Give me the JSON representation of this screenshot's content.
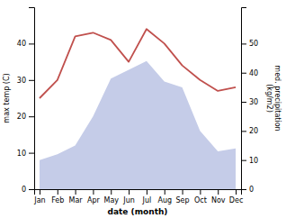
{
  "chart_data": {
    "type": "line",
    "categories": [
      "Jan",
      "Feb",
      "Mar",
      "Apr",
      "May",
      "Jun",
      "Jul",
      "Aug",
      "Sep",
      "Oct",
      "Nov",
      "Dec"
    ],
    "xlabel": "date (month)",
    "ylabel": "max temp (C)",
    "y2label": "med. precipitation\n(kg/m2)",
    "ylim": [
      0,
      50
    ],
    "yticks": [
      0,
      10,
      20,
      30,
      40
    ],
    "y2lim": [
      0,
      62.5
    ],
    "y2ticks": [
      0,
      10,
      20,
      30,
      40,
      50
    ],
    "series": [
      {
        "type": "line",
        "color": "#c0504d",
        "values": [
          25,
          30,
          42,
          43,
          41,
          35,
          44,
          40,
          34,
          30,
          27,
          28
        ]
      },
      {
        "type": "area",
        "axis": "y2",
        "color": "#c5cce8",
        "values": [
          10,
          12,
          15,
          25,
          38,
          41,
          44,
          37,
          35,
          20,
          13,
          14
        ]
      }
    ]
  }
}
